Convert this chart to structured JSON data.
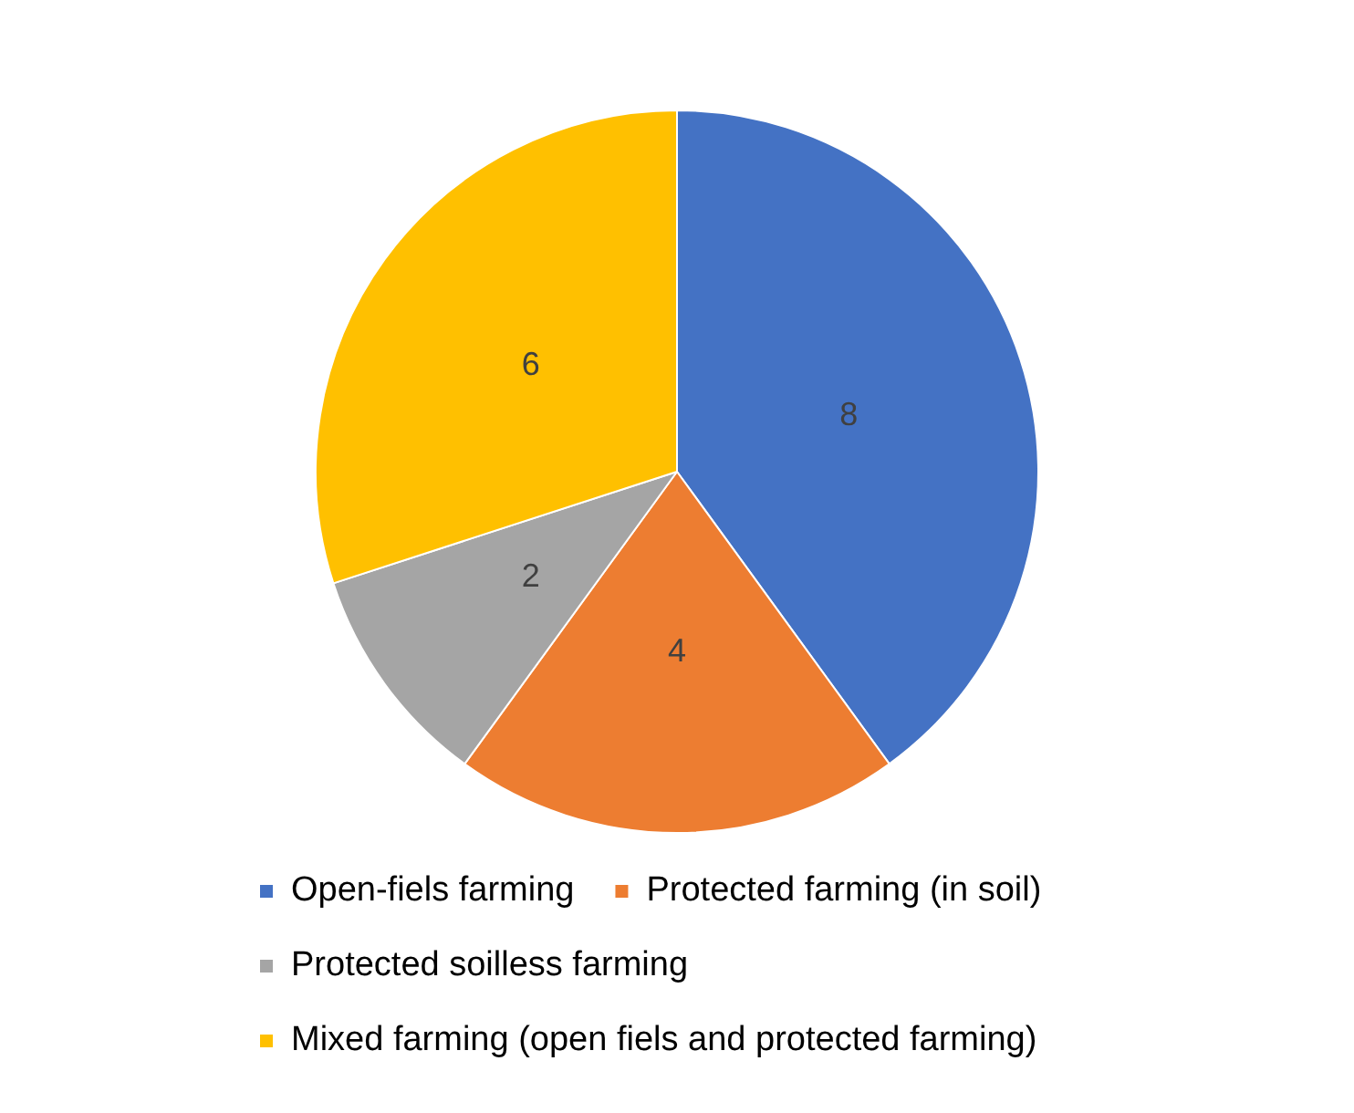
{
  "chart_data": {
    "type": "pie",
    "categories": [
      "Open-fiels farming",
      "Protected farming (in soil)",
      "Protected soilless farming",
      "Mixed farming (open fiels and protected farming)"
    ],
    "values": [
      8,
      4,
      2,
      6
    ],
    "colors": [
      "#4472c4",
      "#ed7d31",
      "#a5a5a5",
      "#ffc000"
    ],
    "data_labels": true,
    "legend": "bottom"
  }
}
